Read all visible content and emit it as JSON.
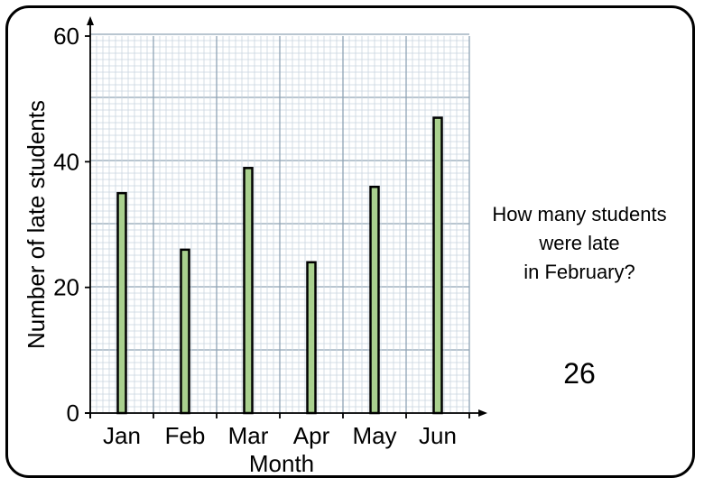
{
  "chart_data": {
    "type": "bar",
    "categories": [
      "Jan",
      "Feb",
      "Mar",
      "Apr",
      "May",
      "Jun"
    ],
    "values": [
      35,
      26,
      39,
      24,
      36,
      47
    ],
    "xlabel": "Month",
    "ylabel": "Number of late students",
    "ylim": [
      0,
      60
    ],
    "yticks": [
      "0",
      "20",
      "40",
      "60"
    ],
    "grid": true,
    "bar_fill": "#a9d08e",
    "bar_stroke": "#000000",
    "grid_minor_color": "#c8d4df",
    "grid_major_color": "#8fa3b5"
  },
  "question": {
    "line1": "How many students",
    "line2": "were late",
    "line3": "in February?"
  },
  "answer": "26"
}
